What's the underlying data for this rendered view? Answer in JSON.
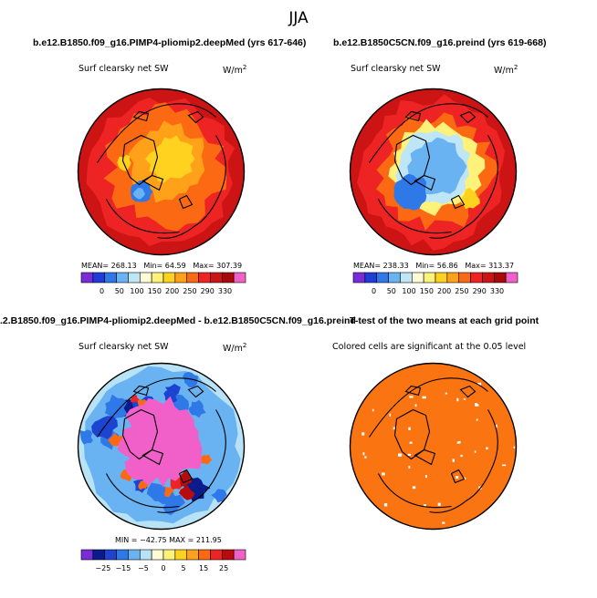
{
  "figure": {
    "title": "JJA"
  },
  "colors": {
    "sw_scale": [
      "#7b2cd9",
      "#1f3cd8",
      "#2f78e8",
      "#6ab3f2",
      "#bfe6f7",
      "#fffbd6",
      "#fff27a",
      "#ffd21f",
      "#ffa21a",
      "#fb6a12",
      "#ee2424",
      "#cc1414",
      "#a80a0a",
      "#f060c8"
    ],
    "diff_scale": [
      "#7b2cd9",
      "#0a1c8c",
      "#1c44d0",
      "#2f78e8",
      "#6ab3f2",
      "#b8e2f5",
      "#fffbd6",
      "#fff27a",
      "#ffd21f",
      "#ffa21a",
      "#fb6a12",
      "#ee2424",
      "#b80c0c",
      "#f060c8"
    ],
    "significance": "#fb7412",
    "land": "#000000"
  },
  "chart_data": [
    {
      "type": "heatmap",
      "title": "b.e12.B1850.f09_g16.PIMP4-pliomip2.deepMed (yrs 617-646)",
      "variable": "Surf clearsky net SW",
      "units": "W/m",
      "units_exp": "2",
      "stats": {
        "mean_label": "MEAN=",
        "mean": "268.13",
        "min_label": "Min=",
        "min": "64.59",
        "max_label": "Max=",
        "max": "307.39"
      },
      "colorbar_ticks": [
        "0",
        "50",
        "100",
        "150",
        "200",
        "250",
        "290",
        "330"
      ]
    },
    {
      "type": "heatmap",
      "title": "b.e12.B1850C5CN.f09_g16.preind (yrs 619-668)",
      "variable": "Surf clearsky net SW",
      "units": "W/m",
      "units_exp": "2",
      "stats": {
        "mean_label": "MEAN=",
        "mean": "238.33",
        "min_label": "Min=",
        "min": "56.86",
        "max_label": "Max=",
        "max": "313.37"
      },
      "colorbar_ticks": [
        "0",
        "50",
        "100",
        "150",
        "200",
        "250",
        "290",
        "330"
      ]
    },
    {
      "type": "heatmap",
      "title": ".2.B1850.f09_g16.PIMP4-pliomip2.deepMed - b.e12.B1850C5CN.f09_g16.preind",
      "variable": "Surf clearsky net SW",
      "units": "W/m",
      "units_exp": "2",
      "stats": {
        "text": "MIN = −42.75  MAX = 211.95"
      },
      "colorbar_ticks": [
        "−25",
        "−15",
        "−5",
        "0",
        "5",
        "15",
        "25"
      ]
    },
    {
      "type": "heatmap",
      "title": "T-test of the two means at each grid point",
      "variable": "Colored cells are significant at the 0.05 level"
    }
  ]
}
